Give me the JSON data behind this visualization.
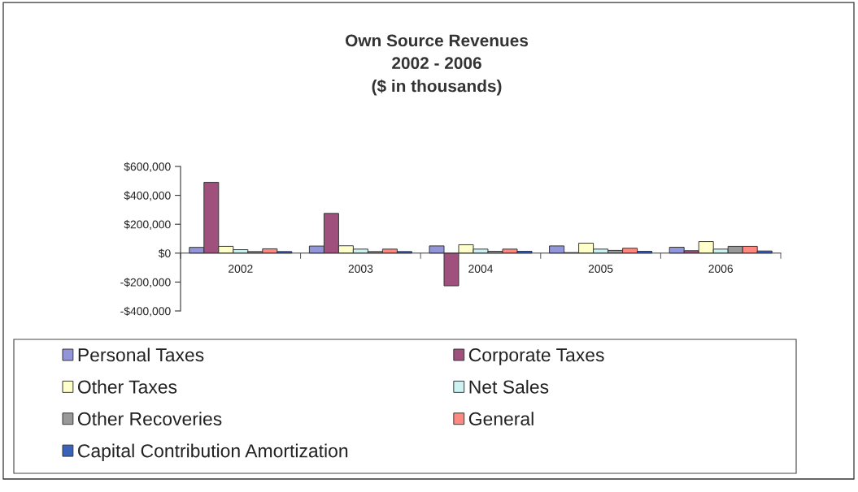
{
  "chart_data": {
    "type": "bar",
    "title": "Own Source Revenues\n2002 - 2006\n($ in thousands)",
    "categories": [
      "2002",
      "2003",
      "2004",
      "2005",
      "2006"
    ],
    "series": [
      {
        "name": "Personal Taxes",
        "color": "#9395d9",
        "values": [
          40000,
          49000,
          50000,
          50000,
          41000
        ]
      },
      {
        "name": "Corporate Taxes",
        "color": "#a0507c",
        "values": [
          490000,
          275000,
          -226000,
          4000,
          17000
        ]
      },
      {
        "name": "Other Taxes",
        "color": "#ffffcc",
        "values": [
          47000,
          51000,
          58000,
          69000,
          80000
        ]
      },
      {
        "name": "Net Sales",
        "color": "#ccf2f2",
        "values": [
          24000,
          28000,
          28000,
          28000,
          28000
        ]
      },
      {
        "name": "Other Recoveries",
        "color": "#999999",
        "values": [
          11000,
          11000,
          13000,
          19000,
          47000
        ]
      },
      {
        "name": "General",
        "color": "#ff8880",
        "values": [
          30000,
          28000,
          28000,
          34000,
          47000
        ]
      },
      {
        "name": "Capital Contribution Amortization",
        "color": "#3a62b8",
        "values": [
          11000,
          11000,
          13000,
          13000,
          15000
        ]
      }
    ],
    "ylim": [
      -400000,
      600000
    ],
    "yticks": [
      {
        "value": -400000,
        "label": "-$400,000"
      },
      {
        "value": -200000,
        "label": "-$200,000"
      },
      {
        "value": 0,
        "label": "$0"
      },
      {
        "value": 200000,
        "label": "$200,000"
      },
      {
        "value": 400000,
        "label": "$400,000"
      },
      {
        "value": 600000,
        "label": "$600,000"
      }
    ],
    "legend": "bottom"
  }
}
